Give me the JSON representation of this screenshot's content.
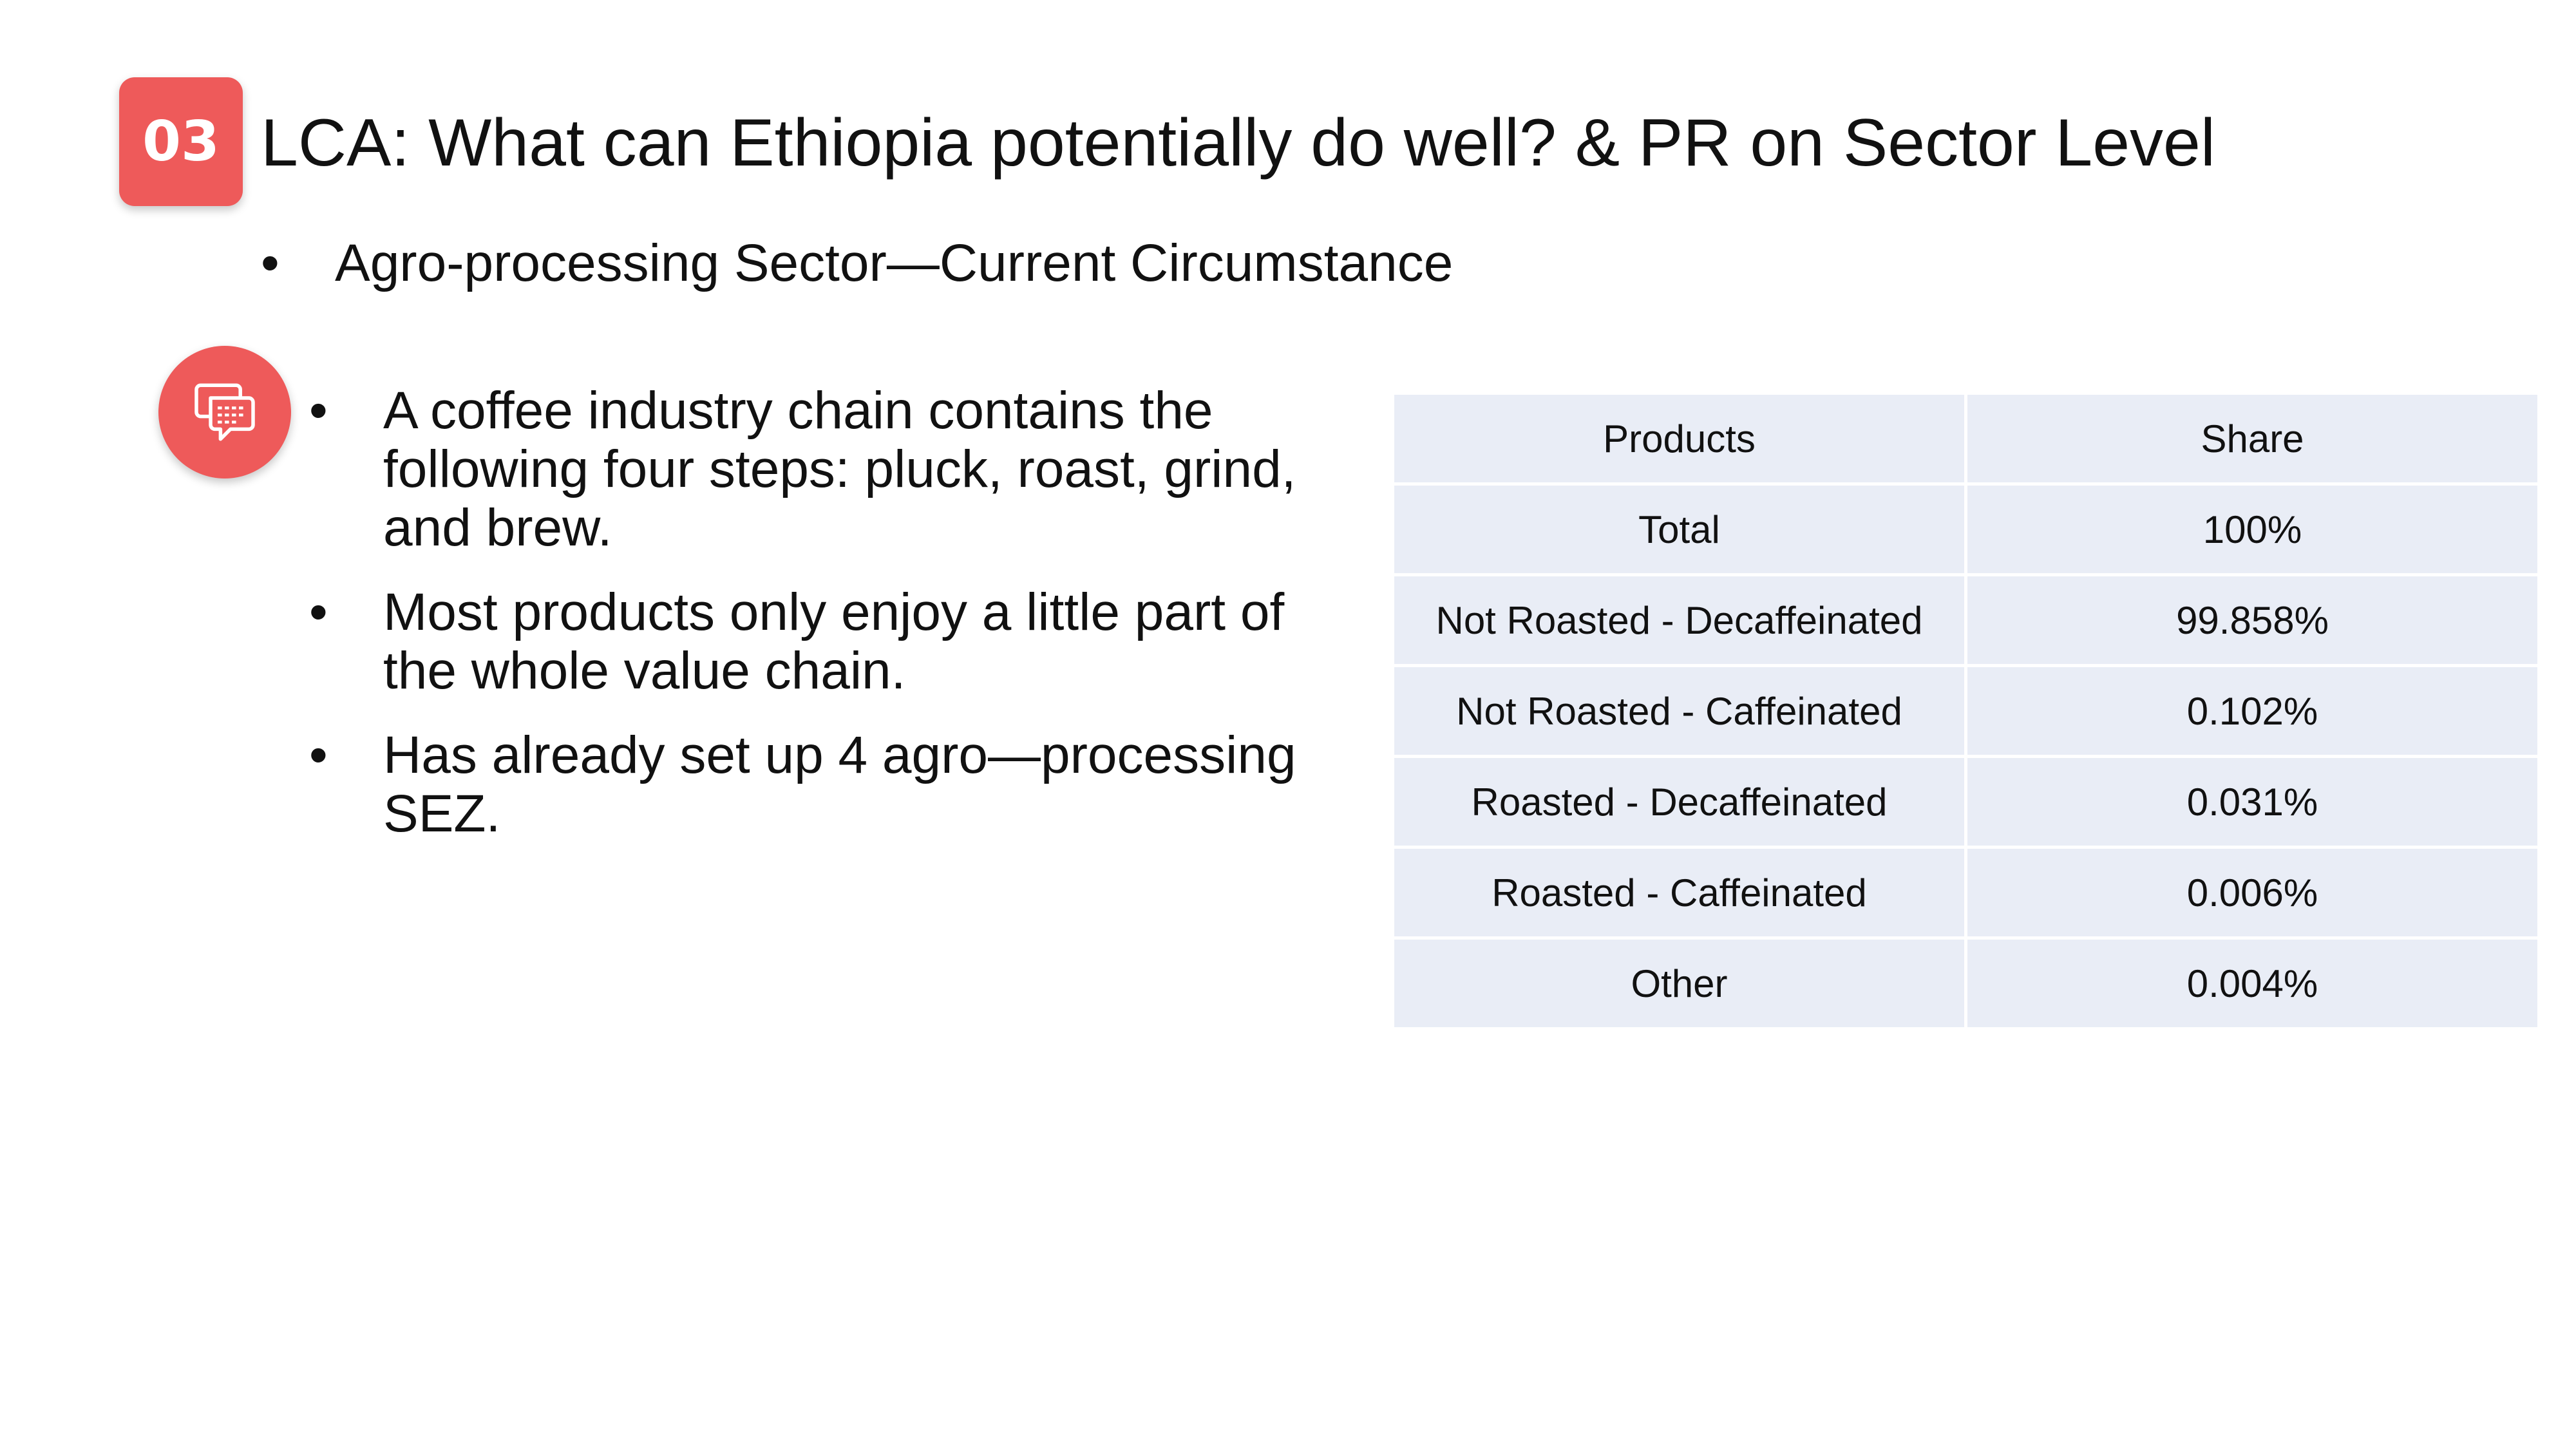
{
  "slide": {
    "section_number": "03",
    "title": "LCA: What can Ethiopia potentially do well? & PR on Sector Level",
    "subtitle_bullet": "•",
    "subtitle": "Agro-processing Sector—Current Circumstance",
    "comment_icon": "chat-bubbles-icon",
    "accent_color": "#ee5a5a",
    "bullet_symbol": "•",
    "bullets": [
      "A coffee industry chain contains the following four steps: pluck, roast, grind, and brew.",
      "Most products only enjoy a little part of the whole value chain.",
      "Has already set up 4 agro—processing SEZ."
    ]
  },
  "table": {
    "header_color": "#e9edf6",
    "headers": [
      "Products",
      "Share"
    ],
    "rows": [
      [
        "Total",
        "100%"
      ],
      [
        "Not Roasted - Decaffeinated",
        "99.858%"
      ],
      [
        "Not Roasted - Caffeinated",
        "0.102%"
      ],
      [
        "Roasted - Decaffeinated",
        "0.031%"
      ],
      [
        "Roasted - Caffeinated",
        "0.006%"
      ],
      [
        "Other",
        "0.004%"
      ]
    ]
  }
}
